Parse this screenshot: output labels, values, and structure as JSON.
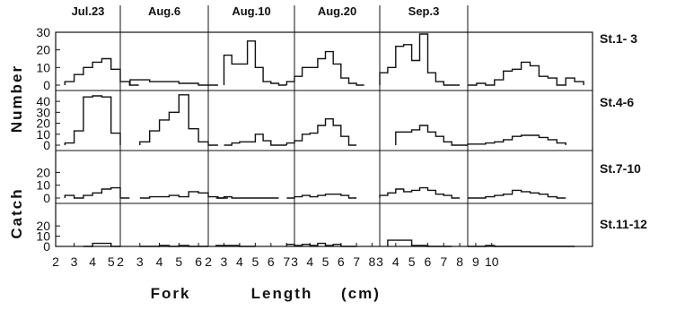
{
  "chart_data": {
    "type": "histogram-grid",
    "title": "",
    "xlabel": "Fork Length (cm)",
    "ylabel": "Catch Number",
    "xlabel_words": [
      "Fork",
      "Length",
      "(cm)"
    ],
    "ylabel_words": [
      "Catch",
      "Number"
    ],
    "columns": [
      {
        "date": "Jul.23",
        "xlim": [
          2,
          5.5
        ],
        "xticks": [
          2,
          3,
          4,
          5
        ]
      },
      {
        "date": "Aug.6",
        "xlim": [
          2,
          6.5
        ],
        "xticks": [
          2,
          3,
          4,
          5,
          6
        ]
      },
      {
        "date": "Aug.10",
        "xlim": [
          2,
          7.5
        ],
        "xticks": [
          2,
          3,
          4,
          5,
          6,
          7
        ]
      },
      {
        "date": "Aug.20",
        "xlim": [
          3,
          8.5
        ],
        "xticks": [
          3,
          4,
          5,
          6,
          7,
          8
        ]
      },
      {
        "date": "Aug.20",
        "xlim": [
          3,
          8.5
        ],
        "xticks": [
          3,
          4,
          5,
          6,
          7,
          8
        ]
      },
      {
        "date": "Sep.3",
        "xlim": [
          3,
          10
        ],
        "xticks": [
          3,
          4,
          5,
          6,
          7,
          8,
          9,
          10
        ]
      }
    ],
    "rows": [
      {
        "station": "St.1- 3",
        "ylim": [
          0,
          30
        ],
        "yticks": [
          0,
          10,
          20,
          30
        ]
      },
      {
        "station": "St.4-6",
        "ylim": [
          0,
          50
        ],
        "yticks": [
          0,
          10,
          20,
          30,
          40
        ]
      },
      {
        "station": "St.7-10",
        "ylim": [
          0,
          30
        ],
        "yticks": [
          0,
          10,
          20
        ]
      },
      {
        "station": "St.11-12",
        "ylim": [
          0,
          30
        ],
        "yticks": [
          0,
          10,
          20
        ]
      }
    ],
    "bin_width": 0.5,
    "series": [
      [
        {
          "start": 2.5,
          "values": [
            2,
            6,
            10,
            13,
            15,
            9,
            2,
            0
          ]
        },
        {
          "start": 2.5,
          "values": [
            3,
            3,
            2,
            2,
            2,
            1,
            1,
            0,
            0
          ]
        },
        {
          "start": 3.0,
          "values": [
            17,
            12,
            12,
            25,
            10,
            2,
            1,
            0
          ]
        },
        {
          "start": 2.5,
          "values": [
            2,
            5,
            10,
            10,
            15,
            19,
            12,
            4,
            1,
            0
          ]
        },
        {
          "start": 3.0,
          "values": [
            7,
            10,
            22,
            23,
            14,
            29,
            7,
            2,
            0,
            0
          ]
        },
        {
          "start": 3.0,
          "values": [
            0,
            1,
            0,
            3,
            8,
            9,
            13,
            11,
            5,
            4,
            0,
            4,
            2
          ]
        }
      ],
      [
        {
          "start": 2.5,
          "values": [
            2,
            13,
            44,
            45,
            44,
            11
          ]
        },
        {
          "start": 3.0,
          "values": [
            3,
            13,
            23,
            30,
            46,
            15,
            3,
            0
          ]
        },
        {
          "start": 3.0,
          "values": [
            0,
            2,
            3,
            3,
            10,
            4,
            0,
            0
          ]
        },
        {
          "start": 2.5,
          "values": [
            2,
            4,
            10,
            11,
            18,
            24,
            18,
            8,
            0
          ]
        },
        {
          "start": 4.0,
          "values": [
            12,
            12,
            14,
            18,
            12,
            8,
            3,
            0,
            0
          ]
        },
        {
          "start": 3.0,
          "values": [
            1,
            1,
            2,
            3,
            5,
            8,
            9,
            9,
            7,
            5,
            2
          ]
        }
      ],
      [
        {
          "start": 2.5,
          "values": [
            2,
            0,
            2,
            4,
            7,
            8,
            0
          ]
        },
        {
          "start": 3.0,
          "values": [
            0,
            1,
            1,
            2,
            1,
            5,
            4,
            1,
            0
          ]
        },
        {
          "start": 2.5,
          "values": [
            0,
            1,
            0,
            0,
            0,
            0,
            0,
            0
          ]
        },
        {
          "start": 2.5,
          "values": [
            0,
            1,
            2,
            1,
            2,
            3,
            3,
            2,
            0
          ]
        },
        {
          "start": 3.0,
          "values": [
            2,
            4,
            7,
            5,
            6,
            8,
            6,
            3,
            2,
            0
          ]
        },
        {
          "start": 3.0,
          "values": [
            0,
            0,
            1,
            2,
            3,
            6,
            5,
            4,
            3,
            1,
            0
          ]
        }
      ],
      [
        {
          "start": 3.5,
          "values": [
            0,
            3,
            3,
            0
          ]
        },
        {
          "start": 3.0,
          "values": [
            0,
            0,
            1,
            0,
            1,
            0,
            0
          ]
        },
        {
          "start": 2.5,
          "values": [
            1,
            1,
            1,
            0,
            0
          ]
        },
        {
          "start": 2.5,
          "values": [
            2,
            1,
            2,
            1,
            3,
            1,
            2,
            0,
            0
          ]
        },
        {
          "start": 3.5,
          "values": [
            6,
            6,
            6,
            1,
            1,
            0,
            0,
            0
          ]
        },
        {
          "start": 3.0,
          "values": [
            0,
            0,
            1,
            0,
            0,
            0,
            0,
            0,
            0,
            0,
            0,
            0
          ]
        }
      ]
    ]
  }
}
